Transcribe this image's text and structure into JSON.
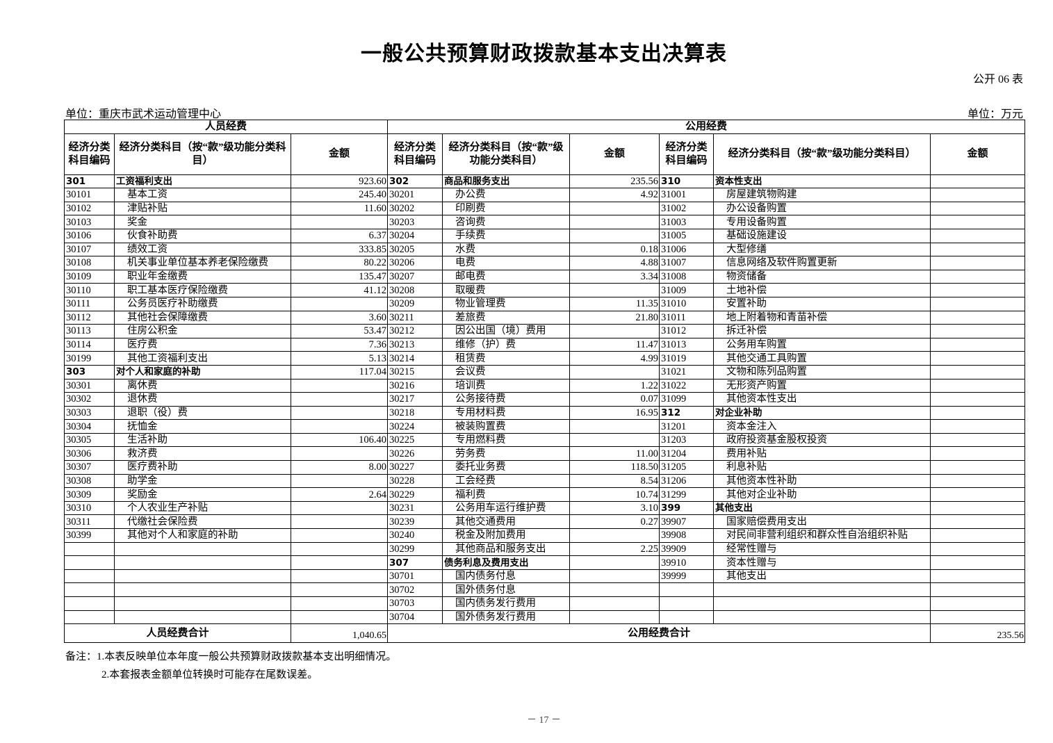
{
  "title": "一般公共预算财政拨款基本支出决算表",
  "form_no": "公开 06 表",
  "unit_org": "单位：重庆市武术运动管理中心",
  "unit_money": "单位：万元",
  "headers": {
    "personnel": "人员经费",
    "public": "公用经费",
    "code": "经济分类科目编码",
    "name_left": "经济分类科目（按“款”级功能分类科目）",
    "name_mid": "经济分类科目（按“款”级功能分类科目）",
    "name_right": "经济分类科目（按“款”级功能分类科目）",
    "amount": "金额"
  },
  "columns": {
    "left": [
      {
        "code": "301",
        "name": "工资福利支出",
        "amount": "923.60",
        "level": 1
      },
      {
        "code": "30101",
        "name": "基本工资",
        "amount": "245.40",
        "level": 2
      },
      {
        "code": "30102",
        "name": "津贴补贴",
        "amount": "11.60",
        "level": 2
      },
      {
        "code": "30103",
        "name": "奖金",
        "amount": "",
        "level": 2
      },
      {
        "code": "30106",
        "name": "伙食补助费",
        "amount": "6.37",
        "level": 2
      },
      {
        "code": "30107",
        "name": "绩效工资",
        "amount": "333.85",
        "level": 2
      },
      {
        "code": "30108",
        "name": "机关事业单位基本养老保险缴费",
        "amount": "80.22",
        "level": 2
      },
      {
        "code": "30109",
        "name": "职业年金缴费",
        "amount": "135.47",
        "level": 2
      },
      {
        "code": "30110",
        "name": "职工基本医疗保险缴费",
        "amount": "41.12",
        "level": 2
      },
      {
        "code": "30111",
        "name": "公务员医疗补助缴费",
        "amount": "",
        "level": 2
      },
      {
        "code": "30112",
        "name": "其他社会保障缴费",
        "amount": "3.60",
        "level": 2
      },
      {
        "code": "30113",
        "name": "住房公积金",
        "amount": "53.47",
        "level": 2
      },
      {
        "code": "30114",
        "name": "医疗费",
        "amount": "7.36",
        "level": 2
      },
      {
        "code": "30199",
        "name": "其他工资福利支出",
        "amount": "5.13",
        "level": 2
      },
      {
        "code": "303",
        "name": "对个人和家庭的补助",
        "amount": "117.04",
        "level": 1
      },
      {
        "code": "30301",
        "name": "离休费",
        "amount": "",
        "level": 2
      },
      {
        "code": "30302",
        "name": "退休费",
        "amount": "",
        "level": 2
      },
      {
        "code": "30303",
        "name": "退职（役）费",
        "amount": "",
        "level": 2
      },
      {
        "code": "30304",
        "name": "抚恤金",
        "amount": "",
        "level": 2
      },
      {
        "code": "30305",
        "name": "生活补助",
        "amount": "106.40",
        "level": 2
      },
      {
        "code": "30306",
        "name": "救济费",
        "amount": "",
        "level": 2
      },
      {
        "code": "30307",
        "name": "医疗费补助",
        "amount": "8.00",
        "level": 2
      },
      {
        "code": "30308",
        "name": "助学金",
        "amount": "",
        "level": 2
      },
      {
        "code": "30309",
        "name": "奖励金",
        "amount": "2.64",
        "level": 2
      },
      {
        "code": "30310",
        "name": "个人农业生产补贴",
        "amount": "",
        "level": 2
      },
      {
        "code": "30311",
        "name": "代缴社会保险费",
        "amount": "",
        "level": 2
      },
      {
        "code": "30399",
        "name": "其他对个人和家庭的补助",
        "amount": "",
        "level": 2
      }
    ],
    "mid": [
      {
        "code": "302",
        "name": "商品和服务支出",
        "amount": "235.56",
        "level": 1
      },
      {
        "code": "30201",
        "name": "办公费",
        "amount": "4.92",
        "level": 2
      },
      {
        "code": "30202",
        "name": "印刷费",
        "amount": "",
        "level": 2
      },
      {
        "code": "30203",
        "name": "咨询费",
        "amount": "",
        "level": 2
      },
      {
        "code": "30204",
        "name": "手续费",
        "amount": "",
        "level": 2
      },
      {
        "code": "30205",
        "name": "水费",
        "amount": "0.18",
        "level": 2
      },
      {
        "code": "30206",
        "name": "电费",
        "amount": "4.88",
        "level": 2
      },
      {
        "code": "30207",
        "name": "邮电费",
        "amount": "3.34",
        "level": 2
      },
      {
        "code": "30208",
        "name": "取暖费",
        "amount": "",
        "level": 2
      },
      {
        "code": "30209",
        "name": "物业管理费",
        "amount": "11.35",
        "level": 2
      },
      {
        "code": "30211",
        "name": "差旅费",
        "amount": "21.80",
        "level": 2
      },
      {
        "code": "30212",
        "name": "因公出国（境）费用",
        "amount": "",
        "level": 2
      },
      {
        "code": "30213",
        "name": "维修（护）费",
        "amount": "11.47",
        "level": 2
      },
      {
        "code": "30214",
        "name": "租赁费",
        "amount": "4.99",
        "level": 2
      },
      {
        "code": "30215",
        "name": "会议费",
        "amount": "",
        "level": 2
      },
      {
        "code": "30216",
        "name": "培训费",
        "amount": "1.22",
        "level": 2
      },
      {
        "code": "30217",
        "name": "公务接待费",
        "amount": "0.07",
        "level": 2
      },
      {
        "code": "30218",
        "name": "专用材料费",
        "amount": "16.95",
        "level": 2
      },
      {
        "code": "30224",
        "name": "被装购置费",
        "amount": "",
        "level": 2
      },
      {
        "code": "30225",
        "name": "专用燃料费",
        "amount": "",
        "level": 2
      },
      {
        "code": "30226",
        "name": "劳务费",
        "amount": "11.00",
        "level": 2
      },
      {
        "code": "30227",
        "name": "委托业务费",
        "amount": "118.50",
        "level": 2
      },
      {
        "code": "30228",
        "name": "工会经费",
        "amount": "8.54",
        "level": 2
      },
      {
        "code": "30229",
        "name": "福利费",
        "amount": "10.74",
        "level": 2
      },
      {
        "code": "30231",
        "name": "公务用车运行维护费",
        "amount": "3.10",
        "level": 2
      },
      {
        "code": "30239",
        "name": "其他交通费用",
        "amount": "0.27",
        "level": 2
      },
      {
        "code": "30240",
        "name": "税金及附加费用",
        "amount": "",
        "level": 2
      },
      {
        "code": "30299",
        "name": "其他商品和服务支出",
        "amount": "2.25",
        "level": 2
      },
      {
        "code": "307",
        "name": "债务利息及费用支出",
        "amount": "",
        "level": 1
      },
      {
        "code": "30701",
        "name": "国内债务付息",
        "amount": "",
        "level": 2
      },
      {
        "code": "30702",
        "name": "国外债务付息",
        "amount": "",
        "level": 2
      },
      {
        "code": "30703",
        "name": "国内债务发行费用",
        "amount": "",
        "level": 2
      },
      {
        "code": "30704",
        "name": "国外债务发行费用",
        "amount": "",
        "level": 2
      }
    ],
    "right": [
      {
        "code": "310",
        "name": "资本性支出",
        "amount": "",
        "level": 1
      },
      {
        "code": "31001",
        "name": "房屋建筑物购建",
        "amount": "",
        "level": 2
      },
      {
        "code": "31002",
        "name": "办公设备购置",
        "amount": "",
        "level": 2
      },
      {
        "code": "31003",
        "name": "专用设备购置",
        "amount": "",
        "level": 2
      },
      {
        "code": "31005",
        "name": "基础设施建设",
        "amount": "",
        "level": 2
      },
      {
        "code": "31006",
        "name": "大型修缮",
        "amount": "",
        "level": 2
      },
      {
        "code": "31007",
        "name": "信息网络及软件购置更新",
        "amount": "",
        "level": 2
      },
      {
        "code": "31008",
        "name": "物资储备",
        "amount": "",
        "level": 2
      },
      {
        "code": "31009",
        "name": "土地补偿",
        "amount": "",
        "level": 2
      },
      {
        "code": "31010",
        "name": "安置补助",
        "amount": "",
        "level": 2
      },
      {
        "code": "31011",
        "name": "地上附着物和青苗补偿",
        "amount": "",
        "level": 2
      },
      {
        "code": "31012",
        "name": "拆迁补偿",
        "amount": "",
        "level": 2
      },
      {
        "code": "31013",
        "name": "公务用车购置",
        "amount": "",
        "level": 2
      },
      {
        "code": "31019",
        "name": "其他交通工具购置",
        "amount": "",
        "level": 2
      },
      {
        "code": "31021",
        "name": "文物和陈列品购置",
        "amount": "",
        "level": 2
      },
      {
        "code": "31022",
        "name": "无形资产购置",
        "amount": "",
        "level": 2
      },
      {
        "code": "31099",
        "name": "其他资本性支出",
        "amount": "",
        "level": 2
      },
      {
        "code": "312",
        "name": "对企业补助",
        "amount": "",
        "level": 1
      },
      {
        "code": "31201",
        "name": "资本金注入",
        "amount": "",
        "level": 2
      },
      {
        "code": "31203",
        "name": "政府投资基金股权投资",
        "amount": "",
        "level": 2
      },
      {
        "code": "31204",
        "name": "费用补贴",
        "amount": "",
        "level": 2
      },
      {
        "code": "31205",
        "name": "利息补贴",
        "amount": "",
        "level": 2
      },
      {
        "code": "31206",
        "name": "其他资本性补助",
        "amount": "",
        "level": 2
      },
      {
        "code": "31299",
        "name": "其他对企业补助",
        "amount": "",
        "level": 2
      },
      {
        "code": "399",
        "name": "其他支出",
        "amount": "",
        "level": 1
      },
      {
        "code": "39907",
        "name": "国家赔偿费用支出",
        "amount": "",
        "level": 2
      },
      {
        "code": "39908",
        "name": "对民间非营利组织和群众性自治组织补贴",
        "amount": "",
        "level": 2
      },
      {
        "code": "39909",
        "name": "经常性赠与",
        "amount": "",
        "level": 2
      },
      {
        "code": "39910",
        "name": "资本性赠与",
        "amount": "",
        "level": 2
      },
      {
        "code": "39999",
        "name": "其他支出",
        "amount": "",
        "level": 2
      }
    ]
  },
  "totals": {
    "personnel_label": "人员经费合计",
    "personnel_amount": "1,040.65",
    "public_label": "公用经费合计",
    "public_amount": "235.56"
  },
  "notes": [
    "备注：1.本表反映单位本年度一般公共预算财政拨款基本支出明细情况。",
    "2.本套报表金额单位转换时可能存在尾数误差。"
  ],
  "page_number": "－ 17 －"
}
